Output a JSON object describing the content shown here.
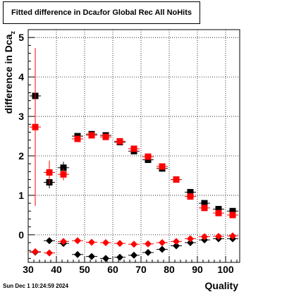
{
  "title": {
    "main": "Fitted difference in Dca",
    "sub": "z",
    "suffix": " for Global Rec All NoHits"
  },
  "timestamp": "Sun Dec  1 10:24:59 2024",
  "colors": {
    "series1": "#000000",
    "series2": "#ff0000"
  },
  "chart_data": {
    "type": "scatter",
    "title": "Fitted difference in Dca_z for Global Rec All NoHits",
    "xlabel": "Quality",
    "ylabel": "difference in Dca_z",
    "xlim": [
      30,
      105
    ],
    "ylim": [
      -0.7,
      5.2
    ],
    "xticks": [
      30,
      40,
      50,
      60,
      70,
      80,
      90,
      100
    ],
    "yticks": [
      0,
      1,
      2,
      3,
      4,
      5
    ],
    "grid": true,
    "series": [
      {
        "marker": "square",
        "color": "#000000",
        "x": [
          32.5,
          37.5,
          42.5,
          47.5,
          52.5,
          57.5,
          62.5,
          67.5,
          72.5,
          77.5,
          82.5,
          87.5,
          92.5,
          97.5,
          102.5
        ],
        "y": [
          3.52,
          1.33,
          1.7,
          2.5,
          2.55,
          2.52,
          2.35,
          2.12,
          1.9,
          1.68,
          1.4,
          1.08,
          0.8,
          0.65,
          0.6
        ],
        "err": [
          0.15,
          0.15,
          0.15,
          0.05,
          0.05,
          0.05,
          0.05,
          0.05,
          0.05,
          0.05,
          0.05,
          0.05,
          0.05,
          0.05,
          0.05
        ]
      },
      {
        "marker": "square",
        "color": "#ff0000",
        "x": [
          32.5,
          37.5,
          42.5,
          47.5,
          52.5,
          57.5,
          62.5,
          67.5,
          72.5,
          77.5,
          82.5,
          87.5,
          92.5,
          97.5,
          102.5
        ],
        "y": [
          2.73,
          1.58,
          1.53,
          2.43,
          2.52,
          2.48,
          2.37,
          2.18,
          1.98,
          1.73,
          1.4,
          0.97,
          0.68,
          0.55,
          0.5
        ],
        "err": [
          2.0,
          0.3,
          0.15,
          0.05,
          0.05,
          0.05,
          0.05,
          0.05,
          0.05,
          0.05,
          0.05,
          0.05,
          0.05,
          0.05,
          0.05
        ]
      },
      {
        "marker": "diamond",
        "color": "#000000",
        "x": [
          32.5,
          37.5,
          42.5,
          47.5,
          52.5,
          57.5,
          62.5,
          67.5,
          72.5,
          77.5,
          82.5,
          87.5,
          92.5,
          97.5,
          102.5
        ],
        "y": [
          -0.44,
          -0.15,
          -0.22,
          -0.5,
          -0.55,
          -0.6,
          -0.57,
          -0.52,
          -0.45,
          -0.37,
          -0.28,
          -0.2,
          -0.13,
          -0.1,
          -0.1
        ],
        "err": [
          0,
          0,
          0,
          0,
          0,
          0,
          0,
          0,
          0,
          0,
          0,
          0,
          0,
          0,
          0
        ]
      },
      {
        "marker": "diamond",
        "color": "#ff0000",
        "x": [
          32.5,
          37.5,
          42.5,
          47.5,
          52.5,
          57.5,
          62.5,
          67.5,
          72.5,
          77.5,
          82.5,
          87.5,
          92.5,
          97.5,
          102.5
        ],
        "y": [
          -0.43,
          -0.46,
          -0.17,
          -0.15,
          -0.19,
          -0.2,
          -0.22,
          -0.24,
          -0.23,
          -0.2,
          -0.17,
          -0.1,
          -0.05,
          -0.04,
          -0.03
        ],
        "err": [
          0,
          0,
          0,
          0,
          0,
          0,
          0,
          0,
          0,
          0,
          0,
          0,
          0,
          0,
          0
        ]
      }
    ]
  }
}
